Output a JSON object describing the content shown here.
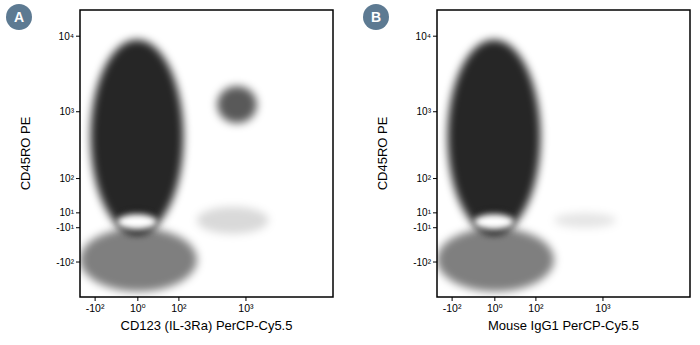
{
  "chart_data": [
    {
      "type": "density",
      "panel_label": "A",
      "x_label": "CD123 (IL-3Ra) PerCP-Cy5.5",
      "y_label": "CD45RO PE",
      "log": true,
      "xlim": [
        -180,
        14000
      ],
      "ylim": [
        -360,
        22000
      ],
      "xticks": [
        {
          "value": -100,
          "label": "-10²"
        },
        {
          "value": 1,
          "label": "10⁰"
        },
        {
          "value": 100,
          "label": "10²"
        },
        {
          "value": 1000,
          "label": "10³"
        }
      ],
      "yticks": [
        {
          "value": 10000,
          "label": "10⁴"
        },
        {
          "value": 1000,
          "label": "10³"
        },
        {
          "value": 100,
          "label": "10²"
        },
        {
          "value": 10,
          "label": "10¹"
        },
        {
          "value": -10,
          "label": "-10¹"
        },
        {
          "value": -100,
          "label": "-10²"
        }
      ],
      "populations": [
        {
          "x": [
            -180,
            200
          ],
          "y": [
            -300,
            -10
          ],
          "density": 0.5
        },
        {
          "x": [
            -120,
            120
          ],
          "y": [
            -20,
            9000
          ],
          "density": 0.85
        },
        {
          "x": [
            200,
            2000
          ],
          "y": [
            -20,
            20
          ],
          "density": 0.15
        },
        {
          "x": [
            400,
            1400
          ],
          "y": [
            700,
            2200
          ],
          "density": 0.65
        },
        {
          "x": [
            -30,
            30
          ],
          "y": [
            -15,
            10
          ],
          "density": 1
        }
      ]
    },
    {
      "type": "density",
      "panel_label": "B",
      "x_label": "Mouse IgG1 PerCP-Cy5.5",
      "y_label": "CD45RO PE",
      "log": true,
      "xlim": [
        -180,
        14000
      ],
      "ylim": [
        -360,
        22000
      ],
      "xticks": [
        {
          "value": -100,
          "label": "-10²"
        },
        {
          "value": 1,
          "label": "10⁰"
        },
        {
          "value": 100,
          "label": "10²"
        },
        {
          "value": 1000,
          "label": "10³"
        }
      ],
      "yticks": [
        {
          "value": 10000,
          "label": "10⁴"
        },
        {
          "value": 1000,
          "label": "10³"
        },
        {
          "value": 100,
          "label": "10²"
        },
        {
          "value": 10,
          "label": "10¹"
        },
        {
          "value": -10,
          "label": "-10¹"
        },
        {
          "value": -100,
          "label": "-10²"
        }
      ],
      "populations": [
        {
          "x": [
            -180,
            200
          ],
          "y": [
            -300,
            -10
          ],
          "density": 0.5
        },
        {
          "x": [
            -120,
            120
          ],
          "y": [
            -20,
            9000
          ],
          "density": 0.85
        },
        {
          "x": [
            200,
            1500
          ],
          "y": [
            -10,
            10
          ],
          "density": 0.1
        },
        {
          "x": [
            -30,
            30
          ],
          "y": [
            -15,
            10
          ],
          "density": 1
        }
      ]
    }
  ]
}
